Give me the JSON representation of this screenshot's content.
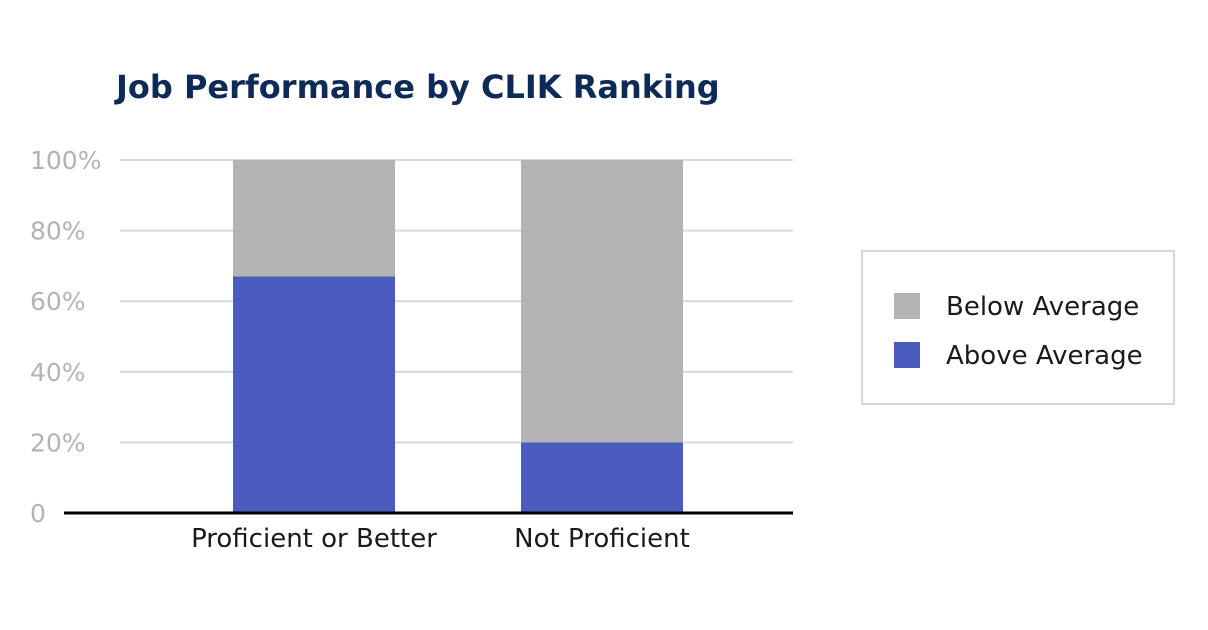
{
  "chart_data": {
    "type": "bar",
    "stacked": true,
    "title": "Job Performance by CLIK Ranking",
    "xlabel": "",
    "ylabel": "",
    "categories": [
      "Proficient or Better",
      "Not Proficient"
    ],
    "series": [
      {
        "name": "Above Average",
        "values": [
          67,
          20
        ],
        "color": "#4a5dbf"
      },
      {
        "name": "Below Average",
        "values": [
          33,
          80
        ],
        "color": "#b2b3b2"
      }
    ],
    "ylim": [
      0,
      100
    ],
    "yticks": [
      0,
      20,
      40,
      60,
      80,
      100
    ],
    "ytick_labels": [
      "0",
      "20%",
      "40%",
      "60%",
      "80%",
      "100%"
    ],
    "grid": true,
    "legend": {
      "placement": "right",
      "order": [
        "Below Average",
        "Above Average"
      ]
    },
    "colors": {
      "title": "#0e2a57",
      "grid": "#d9d9d9",
      "axis": "#000000",
      "tick_label": "#b3b3b3"
    }
  }
}
